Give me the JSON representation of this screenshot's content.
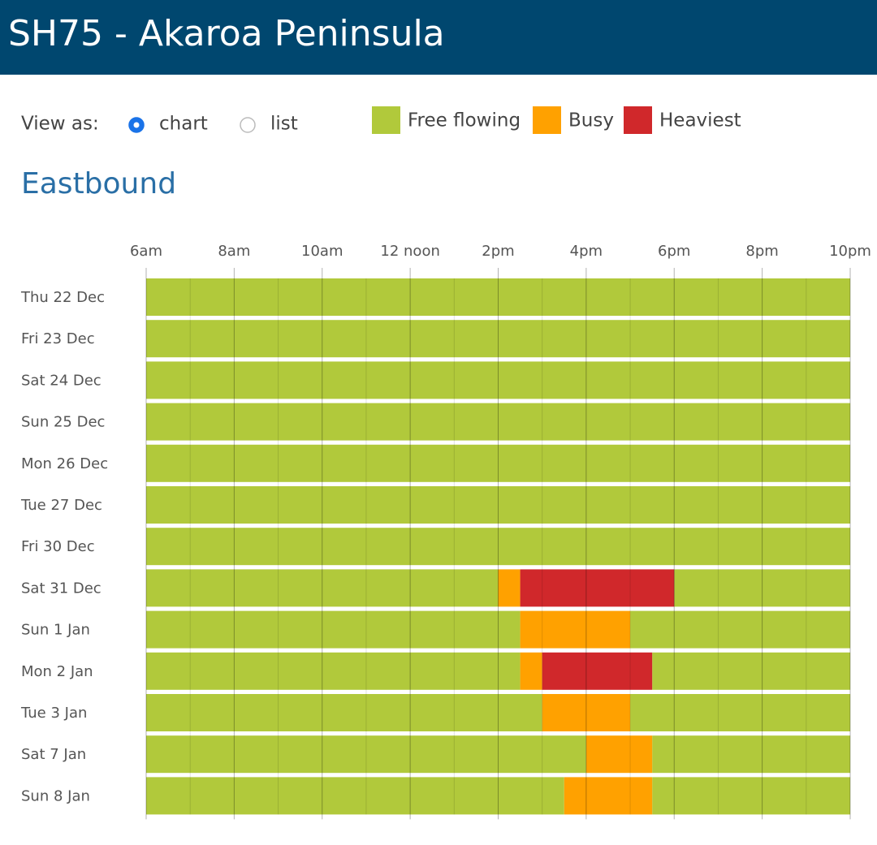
{
  "header": {
    "title": "SH75 - Akaroa Peninsula"
  },
  "controls": {
    "label": "View as:",
    "options": [
      "chart",
      "list"
    ],
    "selected": 0
  },
  "chart_data": {
    "type": "timeline",
    "title": "Eastbound",
    "categories": [
      "Thu 22 Dec",
      "Fri 23 Dec",
      "Sat 24 Dec",
      "Sun 25 Dec",
      "Mon 26 Dec",
      "Tue 27 Dec",
      "Fri 30 Dec",
      "Sat 31 Dec",
      "Sun 1 Jan",
      "Mon 2 Jan",
      "Tue 3 Jan",
      "Sat 7 Jan",
      "Sun 8 Jan"
    ],
    "xlim": [
      6,
      22
    ],
    "xticks": [
      {
        "value": 6,
        "label": "6am"
      },
      {
        "value": 8,
        "label": "8am"
      },
      {
        "value": 10,
        "label": "10am"
      },
      {
        "value": 12,
        "label": "12 noon"
      },
      {
        "value": 14,
        "label": "2pm"
      },
      {
        "value": 16,
        "label": "4pm"
      },
      {
        "value": 18,
        "label": "6pm"
      },
      {
        "value": 20,
        "label": "8pm"
      },
      {
        "value": 22,
        "label": "10pm"
      }
    ],
    "series": [
      {
        "name": "Free flowing",
        "color": "#b1c93b",
        "values": [
          [
            [
              6,
              22
            ]
          ],
          [
            [
              6,
              22
            ]
          ],
          [
            [
              6,
              22
            ]
          ],
          [
            [
              6,
              22
            ]
          ],
          [
            [
              6,
              22
            ]
          ],
          [
            [
              6,
              22
            ]
          ],
          [
            [
              6,
              22
            ]
          ],
          [
            [
              6,
              14
            ],
            [
              18,
              22
            ]
          ],
          [
            [
              6,
              14.5
            ],
            [
              17,
              22
            ]
          ],
          [
            [
              6,
              14.5
            ],
            [
              17.5,
              22
            ]
          ],
          [
            [
              6,
              15
            ],
            [
              17,
              22
            ]
          ],
          [
            [
              6,
              16
            ],
            [
              17.5,
              22
            ]
          ],
          [
            [
              6,
              15.5
            ],
            [
              17.5,
              22
            ]
          ]
        ]
      },
      {
        "name": "Busy",
        "color": "#ffa100",
        "values": [
          [],
          [],
          [],
          [],
          [],
          [],
          [],
          [
            [
              14,
              14.5
            ]
          ],
          [
            [
              14.5,
              17
            ]
          ],
          [
            [
              14.5,
              15
            ]
          ],
          [
            [
              15,
              17
            ]
          ],
          [
            [
              16,
              17.5
            ]
          ],
          [
            [
              15.5,
              17.5
            ]
          ]
        ]
      },
      {
        "name": "Heaviest",
        "color": "#d0282b",
        "values": [
          [],
          [],
          [],
          [],
          [],
          [],
          [],
          [
            [
              14.5,
              18
            ]
          ],
          [],
          [
            [
              15,
              17.5
            ]
          ],
          [],
          [],
          []
        ]
      }
    ]
  }
}
